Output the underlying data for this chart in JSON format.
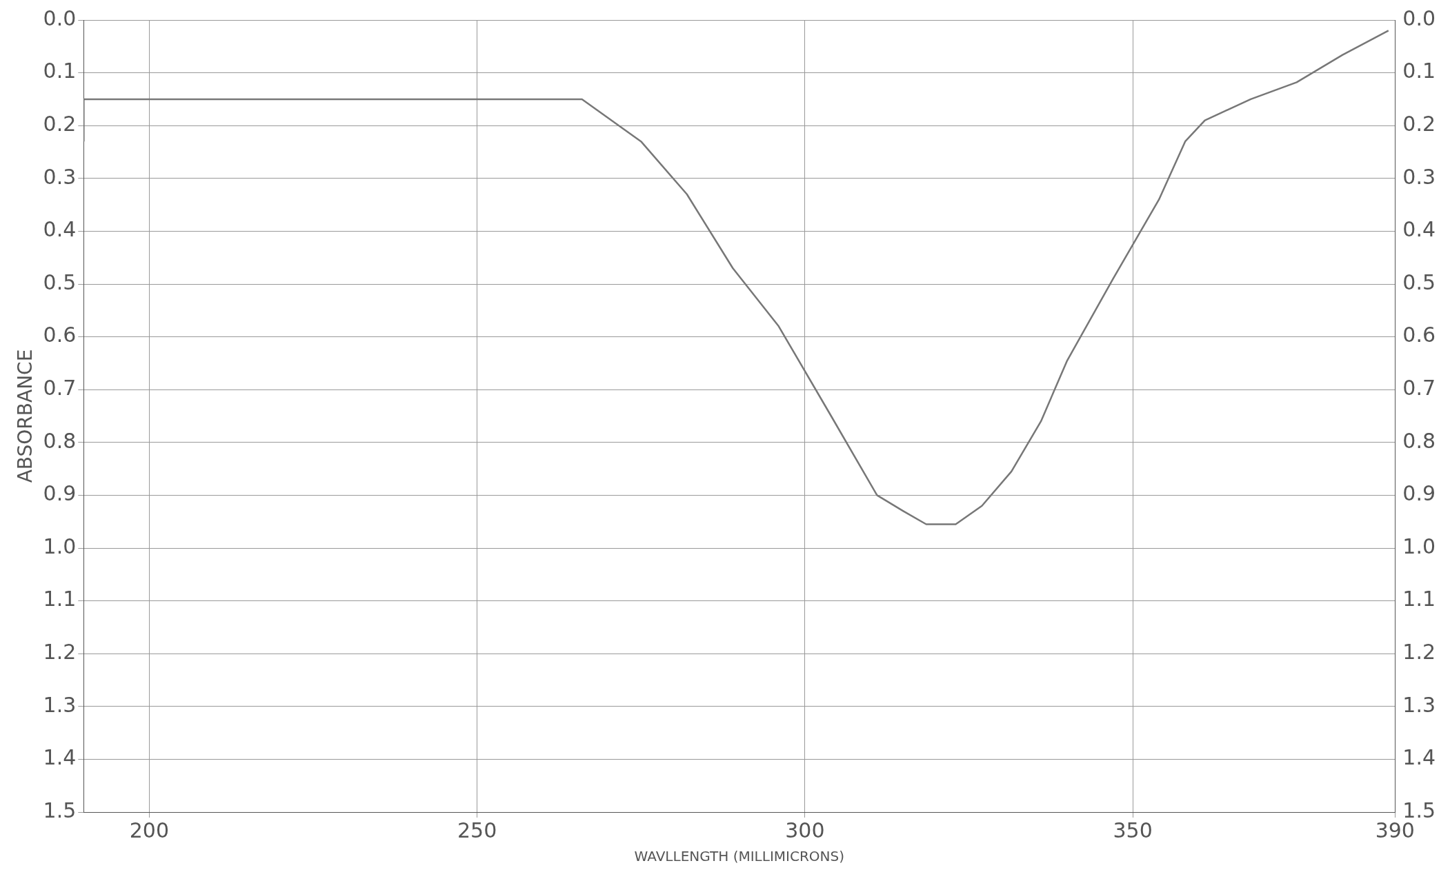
{
  "chart_data": {
    "type": "line",
    "xlabel": "WAVLLENGTH (MILLIMICRONS)",
    "ylabel": "ABSORBANCE",
    "xlim": [
      190,
      390
    ],
    "xticks": [
      200,
      250,
      300,
      350,
      390
    ],
    "ylim": [
      1.5,
      0.0
    ],
    "yticks": [
      {
        "value": 0,
        "label": "0.0"
      },
      {
        "value": 0.1,
        "label": "0.1"
      },
      {
        "value": 0.2,
        "label": "0.2"
      },
      {
        "value": 0.3,
        "label": "0.3"
      },
      {
        "value": 0.4,
        "label": "0.4"
      },
      {
        "value": 0.5,
        "label": "0.5"
      },
      {
        "value": 0.6,
        "label": "0.6"
      },
      {
        "value": 0.7,
        "label": "0.7"
      },
      {
        "value": 0.8,
        "label": "0.8"
      },
      {
        "value": 0.9,
        "label": "0.9"
      },
      {
        "value": 1,
        "label": "1.0"
      },
      {
        "value": 1.1,
        "label": "1.1"
      },
      {
        "value": 1.2,
        "label": "1.2"
      },
      {
        "value": 1.3,
        "label": "1.3"
      },
      {
        "value": 1.4,
        "label": "1.4"
      },
      {
        "value": 1.5,
        "label": "1.5"
      }
    ],
    "y2lim": [
      1.5,
      0.0
    ],
    "y2ticks": [
      {
        "value": 0,
        "label": "0.0"
      },
      {
        "value": 0.1,
        "label": "0.1"
      },
      {
        "value": 0.2,
        "label": "0.2"
      },
      {
        "value": 0.3,
        "label": "0.3"
      },
      {
        "value": 0.4,
        "label": "0.4"
      },
      {
        "value": 0.5,
        "label": "0.5"
      },
      {
        "value": 0.6,
        "label": "0.6"
      },
      {
        "value": 0.7,
        "label": "0.7"
      },
      {
        "value": 0.8,
        "label": "0.8"
      },
      {
        "value": 0.9,
        "label": "0.9"
      },
      {
        "value": 1,
        "label": "1.0"
      },
      {
        "value": 1.1,
        "label": "1.1"
      },
      {
        "value": 1.2,
        "label": "1.2"
      },
      {
        "value": 1.3,
        "label": "1.3"
      },
      {
        "value": 1.4,
        "label": "1.4"
      },
      {
        "value": 1.5,
        "label": "1.5"
      }
    ],
    "grid": true,
    "legend": false,
    "marker": "none",
    "line_style": "solid",
    "series": [
      {
        "color": "#777777",
        "x": [
          190,
          190,
          200,
          220,
          240,
          260,
          266,
          275,
          282,
          289,
          296,
          304,
          311,
          315,
          318.5,
          323,
          327,
          331.5,
          336,
          340,
          347,
          354,
          358,
          361,
          368,
          375,
          382,
          389
        ],
        "values": [
          0.23,
          0.15,
          0.15,
          0.15,
          0.15,
          0.15,
          0.15,
          0.23,
          0.33,
          0.47,
          0.58,
          0.75,
          0.9,
          0.93,
          0.955,
          0.955,
          0.92,
          0.855,
          0.76,
          0.645,
          0.49,
          0.34,
          0.23,
          0.19,
          0.15,
          0.118,
          0.066,
          0.02
        ]
      }
    ]
  }
}
